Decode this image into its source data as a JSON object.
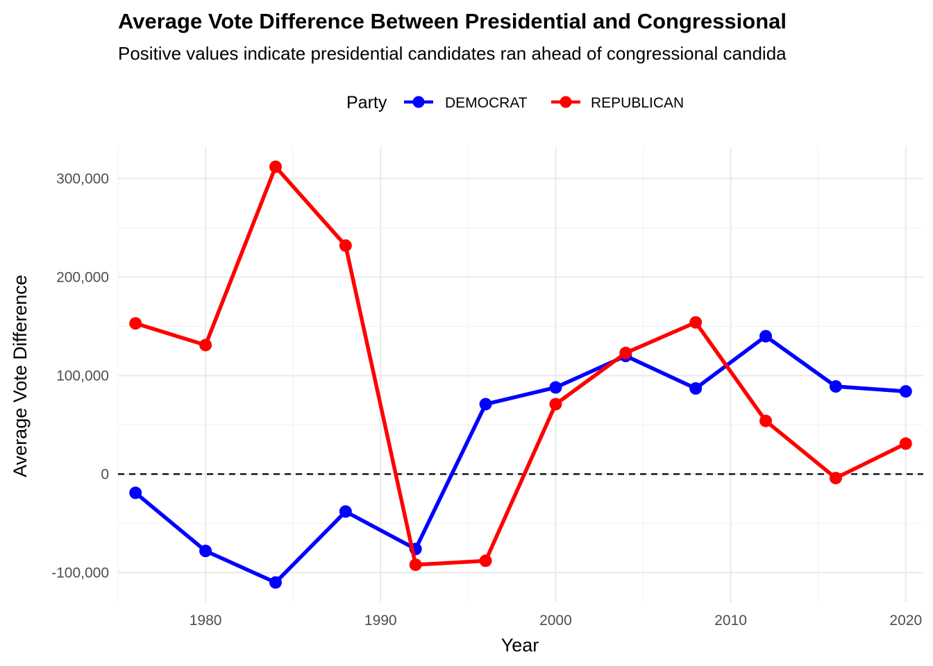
{
  "chart_data": {
    "type": "line",
    "title": "Average Vote Difference Between Presidential and Congressional",
    "subtitle": "Positive values indicate presidential candidates ran ahead of congressional candida",
    "xlabel": "Year",
    "ylabel": "Average Vote Difference",
    "legend": {
      "title": "Party",
      "position": "top"
    },
    "x": [
      1976,
      1980,
      1984,
      1988,
      1992,
      1996,
      2000,
      2004,
      2008,
      2012,
      2016,
      2020
    ],
    "series": [
      {
        "name": "DEMOCRAT",
        "color": "#0000ff",
        "values": [
          -19000,
          -78000,
          -110000,
          -38000,
          -76000,
          71000,
          88000,
          120000,
          87000,
          140000,
          89000,
          84000
        ]
      },
      {
        "name": "REPUBLICAN",
        "color": "#ff0000",
        "values": [
          153000,
          131000,
          312000,
          232000,
          -92000,
          -88000,
          71000,
          123000,
          154000,
          54000,
          -4000,
          31000
        ]
      }
    ],
    "xlim": [
      1975,
      2021
    ],
    "ylim": [
      -130000,
      332000
    ],
    "x_ticks": [
      1980,
      1990,
      2000,
      2010,
      2020
    ],
    "y_ticks": [
      -100000,
      0,
      100000,
      200000,
      300000
    ],
    "x_tick_labels": [
      "1980",
      "1990",
      "2000",
      "2010",
      "2020"
    ],
    "y_tick_labels": [
      "-100,000",
      "0",
      "100,000",
      "200,000",
      "300,000"
    ],
    "reference_line": {
      "y": 0,
      "style": "dashed",
      "color": "#000000"
    },
    "grid": true
  }
}
